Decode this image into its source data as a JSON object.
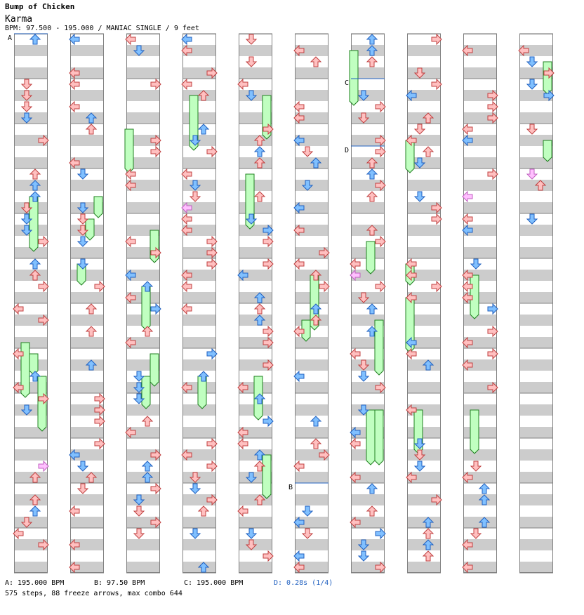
{
  "header": {
    "artist": "Bump of Chicken",
    "title": "Karma",
    "info": "BPM: 97.500 - 195.000 / MANIAC SINGLE / 9 feet"
  },
  "legend": {
    "a": "A: 195.000 BPM",
    "b": "B: 97.50 BPM",
    "c": "C: 195.000 BPM",
    "d": "D: 0.28s (1/4)"
  },
  "summary": "575 steps, 88 freeze arrows, max combo 644",
  "markers": {
    "a": "A",
    "b": "B",
    "c": "C",
    "d": "D"
  },
  "colors": {
    "note_red": "#ffc0c0",
    "note_red_stroke": "#c04040",
    "note_blue": "#80c0ff",
    "note_blue_stroke": "#2060c0",
    "note_pink": "#ffc0ff",
    "note_pink_stroke": "#c060c0",
    "freeze_fill": "#c0ffc0",
    "freeze_stroke": "#208020",
    "stripe": "#cccccc",
    "bpm_line": "#2060c0"
  },
  "chart_data": {
    "type": "step-chart",
    "columns": 10,
    "lanes": [
      "left",
      "down",
      "up",
      "right"
    ],
    "bpm_changes": [
      {
        "label": "A",
        "bpm": 195.0,
        "column": 1,
        "measure": 0
      },
      {
        "label": "C",
        "bpm": 195.0,
        "column": 7,
        "measure": 1
      },
      {
        "label": "D",
        "stop_seconds": 0.28,
        "note": "1/4",
        "column": 7,
        "measure": 2.5
      },
      {
        "label": "B",
        "bpm": 97.5,
        "column": 6,
        "measure": 10
      }
    ],
    "total_steps": 575,
    "freeze_arrows": 88,
    "max_combo": 644
  }
}
